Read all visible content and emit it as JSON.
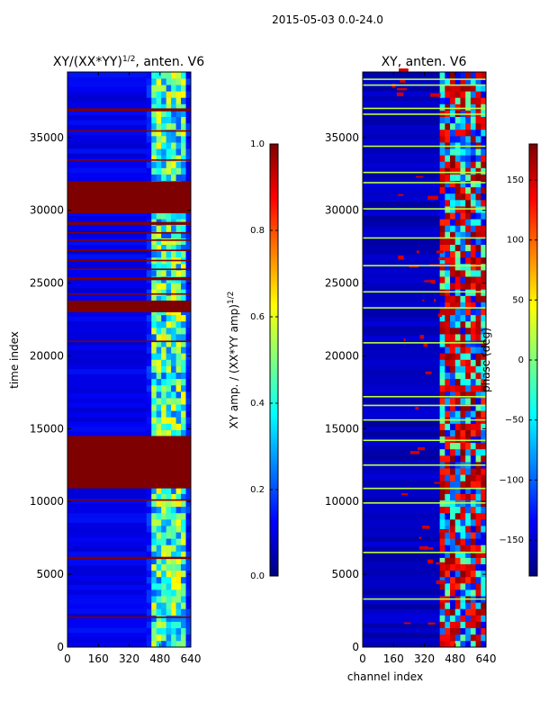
{
  "figure": {
    "suptitle": "2015-05-03 0.0-24.0"
  },
  "colors": {
    "jet": [
      "#00007f",
      "#0000ff",
      "#007fff",
      "#00ffff",
      "#7fff7f",
      "#ffff00",
      "#ff7f00",
      "#ff0000",
      "#7f0000"
    ],
    "frame": "#000000",
    "background": "#ffffff"
  },
  "chart_data": [
    {
      "type": "heatmap",
      "id": "amp",
      "title": "XY/(XX*YY)^{1/2}, anten. V6",
      "xlabel": "",
      "ylabel": "time index",
      "xlim": [
        0,
        640
      ],
      "ylim": [
        0,
        39500
      ],
      "xticks": [
        0,
        160,
        320,
        480,
        640
      ],
      "yticks": [
        0,
        5000,
        10000,
        15000,
        20000,
        25000,
        30000,
        35000
      ],
      "colorbar": {
        "label": "XY amp. / (XX*YY amp)^{1/2}",
        "range": [
          0.0,
          1.0
        ],
        "ticks": [
          0.0,
          0.2,
          0.4,
          0.6,
          0.8,
          1.0
        ],
        "tick_labels": [
          "0.0",
          "0.2",
          "0.4",
          "0.6",
          "0.8",
          "1.0"
        ]
      },
      "background_value": 0.1,
      "active_channel_band": [
        410,
        640
      ],
      "saturated_time_bands": [
        [
          2000,
          2100
        ],
        [
          6050,
          6200
        ],
        [
          10050,
          10150
        ],
        [
          10900,
          14500
        ],
        [
          20950,
          21050
        ],
        [
          23000,
          23800
        ],
        [
          24200,
          24300
        ],
        [
          25200,
          25400
        ],
        [
          25900,
          26000
        ],
        [
          26500,
          26600
        ],
        [
          27200,
          27300
        ],
        [
          27900,
          28000
        ],
        [
          28400,
          28500
        ],
        [
          29000,
          29200
        ],
        [
          29800,
          32000
        ],
        [
          33400,
          33500
        ],
        [
          35400,
          35500
        ],
        [
          36800,
          37000
        ]
      ]
    },
    {
      "type": "heatmap",
      "id": "phase",
      "title": "XY, anten. V6",
      "xlabel": "channel index",
      "ylabel": "",
      "xlim": [
        0,
        640
      ],
      "ylim": [
        0,
        39500
      ],
      "xticks": [
        0,
        160,
        320,
        480,
        640
      ],
      "yticks": [
        0,
        5000,
        10000,
        15000,
        20000,
        25000,
        30000,
        35000
      ],
      "colorbar": {
        "label": "phase (deg)",
        "range": [
          -180,
          180
        ],
        "ticks": [
          -150,
          -100,
          -50,
          0,
          50,
          100,
          150
        ],
        "tick_labels": [
          "−150",
          "−100",
          "−50",
          "0",
          "50",
          "100",
          "150"
        ]
      },
      "background_value": -155,
      "active_channel_band": [
        400,
        640
      ],
      "flagged_time_lines": [
        3300,
        6500,
        9900,
        10900,
        12500,
        14200,
        15600,
        16600,
        17200,
        20900,
        23300,
        24400,
        26200,
        28100,
        30100,
        31900,
        32600,
        34400,
        36600,
        37000,
        38600,
        39000
      ]
    }
  ]
}
